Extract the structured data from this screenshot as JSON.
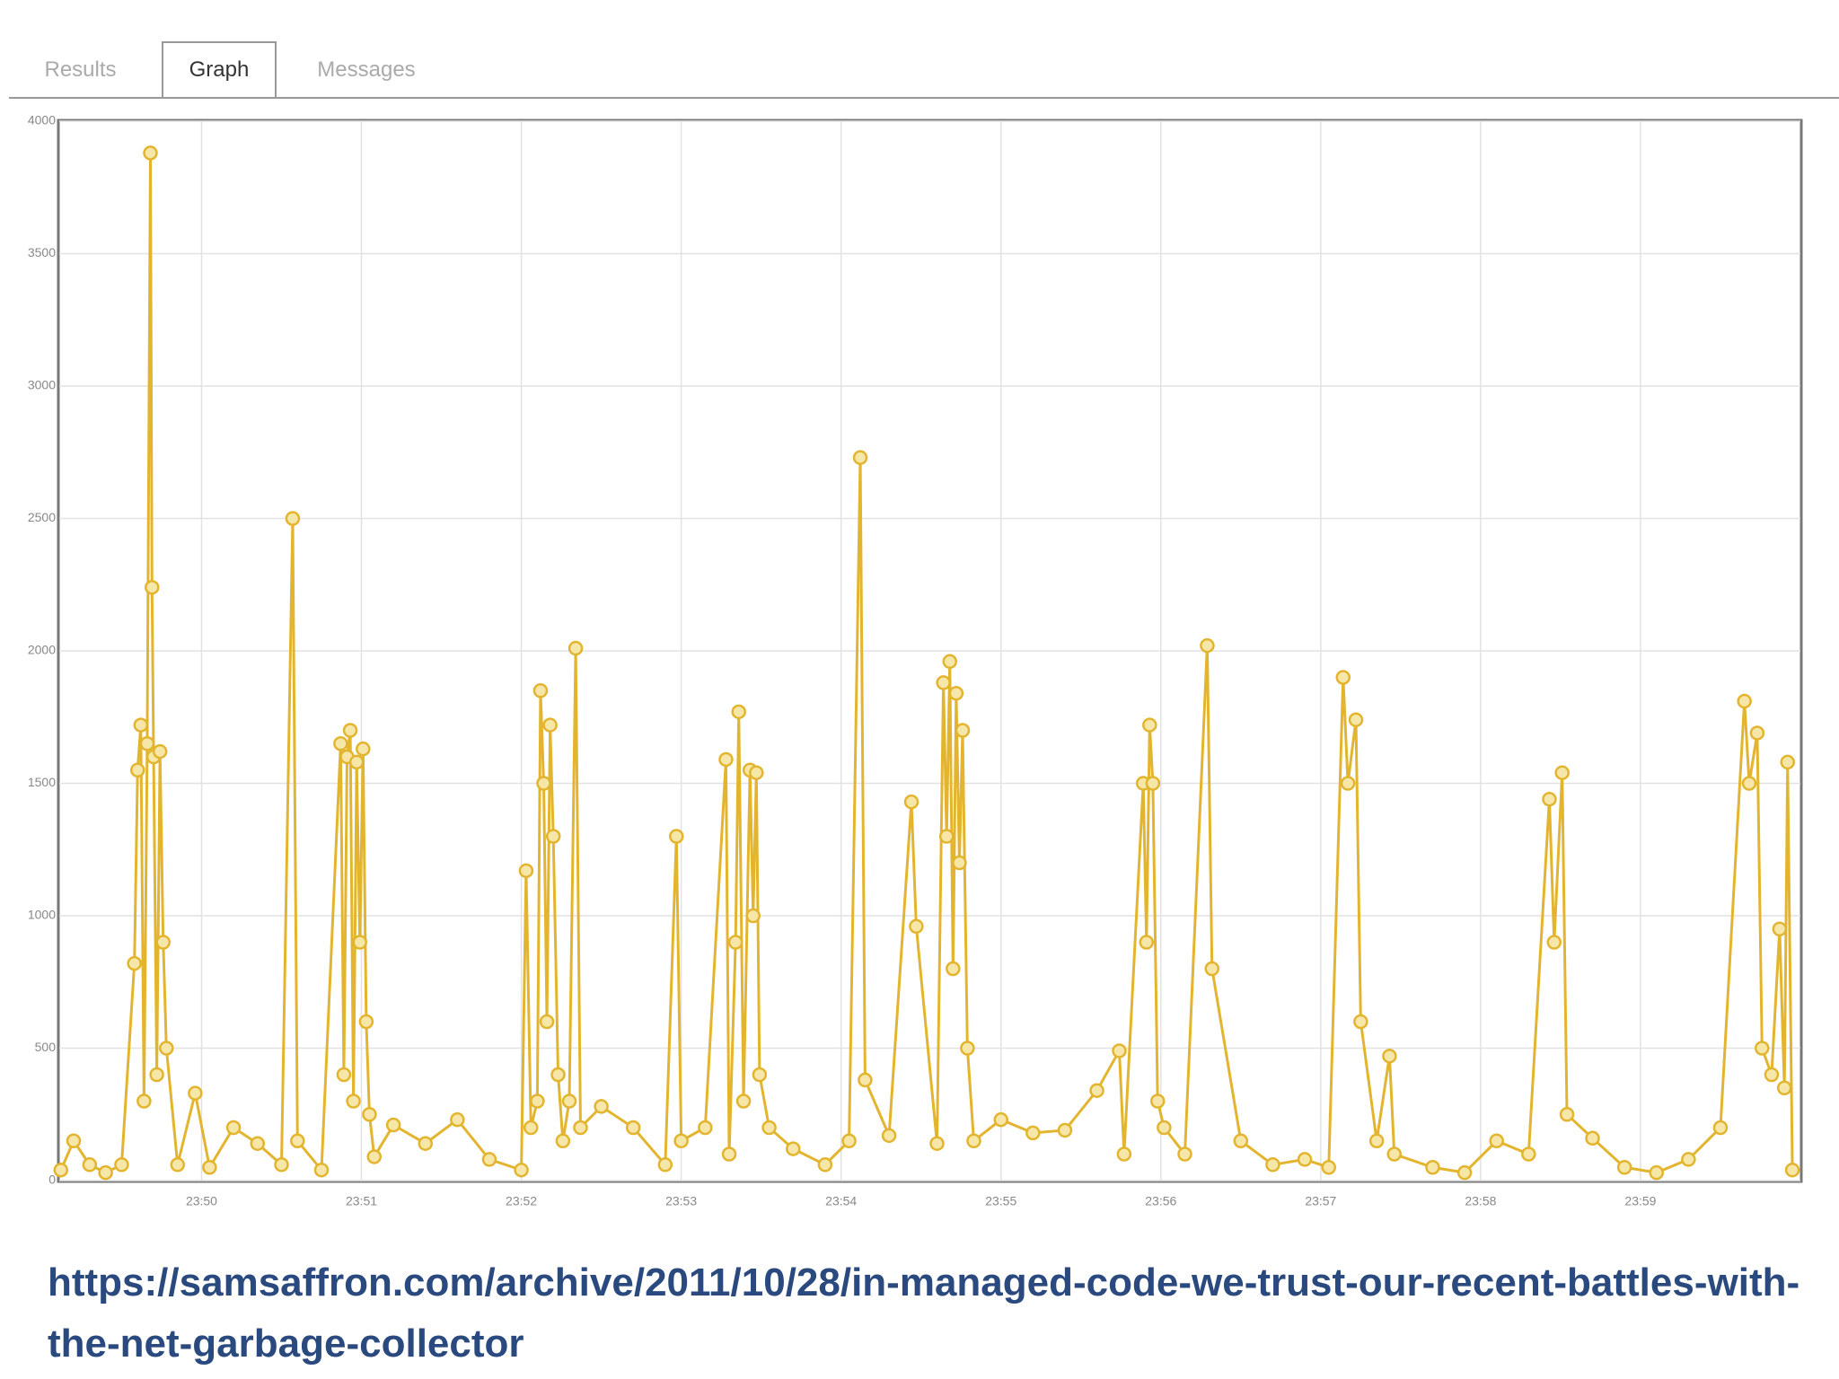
{
  "tabs": [
    "Results",
    "Graph",
    "Messages"
  ],
  "chart_data": {
    "type": "line",
    "x": [
      1429.12,
      1429.2,
      1429.3,
      1429.4,
      1429.5,
      1429.58,
      1429.6,
      1429.62,
      1429.64,
      1429.66,
      1429.68,
      1429.69,
      1429.7,
      1429.72,
      1429.74,
      1429.76,
      1429.78,
      1429.85,
      1429.96,
      1430.05,
      1430.2,
      1430.35,
      1430.5,
      1430.57,
      1430.6,
      1430.75,
      1430.87,
      1430.89,
      1430.91,
      1430.93,
      1430.95,
      1430.97,
      1430.99,
      1431.01,
      1431.03,
      1431.05,
      1431.08,
      1431.2,
      1431.4,
      1431.6,
      1431.8,
      1432.0,
      1432.03,
      1432.06,
      1432.1,
      1432.12,
      1432.14,
      1432.16,
      1432.18,
      1432.2,
      1432.23,
      1432.26,
      1432.3,
      1432.34,
      1432.37,
      1432.5,
      1432.7,
      1432.9,
      1432.97,
      1433.0,
      1433.15,
      1433.28,
      1433.3,
      1433.34,
      1433.36,
      1433.39,
      1433.43,
      1433.45,
      1433.47,
      1433.49,
      1433.55,
      1433.7,
      1433.9,
      1434.05,
      1434.12,
      1434.15,
      1434.3,
      1434.44,
      1434.47,
      1434.6,
      1434.64,
      1434.66,
      1434.68,
      1434.7,
      1434.72,
      1434.74,
      1434.76,
      1434.79,
      1434.83,
      1435.0,
      1435.2,
      1435.4,
      1435.6,
      1435.74,
      1435.77,
      1435.89,
      1435.91,
      1435.93,
      1435.95,
      1435.98,
      1436.02,
      1436.15,
      1436.29,
      1436.32,
      1436.5,
      1436.7,
      1436.9,
      1437.05,
      1437.14,
      1437.17,
      1437.22,
      1437.25,
      1437.35,
      1437.43,
      1437.46,
      1437.7,
      1437.9,
      1438.1,
      1438.3,
      1438.43,
      1438.46,
      1438.51,
      1438.54,
      1438.7,
      1438.9,
      1439.1,
      1439.3,
      1439.5,
      1439.65,
      1439.68,
      1439.73,
      1439.76,
      1439.82,
      1439.87,
      1439.9,
      1439.92,
      1439.95
    ],
    "values": [
      40,
      150,
      60,
      30,
      60,
      820,
      1550,
      1720,
      300,
      1650,
      3880,
      2240,
      1600,
      400,
      1620,
      900,
      500,
      60,
      330,
      50,
      200,
      140,
      60,
      2500,
      150,
      40,
      1650,
      400,
      1600,
      1700,
      300,
      1580,
      900,
      1630,
      600,
      250,
      90,
      210,
      140,
      230,
      80,
      40,
      1170,
      200,
      300,
      1850,
      1500,
      600,
      1720,
      1300,
      400,
      150,
      300,
      2010,
      200,
      280,
      200,
      60,
      1300,
      150,
      200,
      1590,
      100,
      900,
      1770,
      300,
      1550,
      1000,
      1540,
      400,
      200,
      120,
      60,
      150,
      2730,
      380,
      170,
      1430,
      960,
      140,
      1880,
      1300,
      1960,
      800,
      1840,
      1200,
      1700,
      500,
      150,
      230,
      180,
      190,
      340,
      490,
      100,
      1500,
      900,
      1720,
      1500,
      300,
      200,
      100,
      2020,
      800,
      150,
      60,
      80,
      50,
      1900,
      1500,
      1740,
      600,
      150,
      470,
      100,
      50,
      30,
      150,
      100,
      1440,
      900,
      1540,
      250,
      160,
      50,
      30,
      80,
      200,
      1810,
      1500,
      1690,
      500,
      400,
      950,
      350,
      1580,
      40
    ],
    "color": "#e3b52f",
    "xlim": [
      1429.11,
      1440
    ],
    "xticks": [
      {
        "value": 1430,
        "label": "23:50"
      },
      {
        "value": 1431,
        "label": "23:51"
      },
      {
        "value": 1432,
        "label": "23:52"
      },
      {
        "value": 1433,
        "label": "23:53"
      },
      {
        "value": 1434,
        "label": "23:54"
      },
      {
        "value": 1435,
        "label": "23:55"
      },
      {
        "value": 1436,
        "label": "23:56"
      },
      {
        "value": 1437,
        "label": "23:57"
      },
      {
        "value": 1438,
        "label": "23:58"
      },
      {
        "value": 1439,
        "label": "23:59"
      }
    ],
    "ylim": [
      0,
      4000
    ],
    "yticks": [
      0,
      500,
      1000,
      1500,
      2000,
      2500,
      3000,
      3500,
      4000
    ],
    "grid": true
  },
  "caption": "https://samsaffron.com/archive/2011/10/28/in-managed-code-we-trust-our-recent-battles-with-the-net-garbage-collector"
}
